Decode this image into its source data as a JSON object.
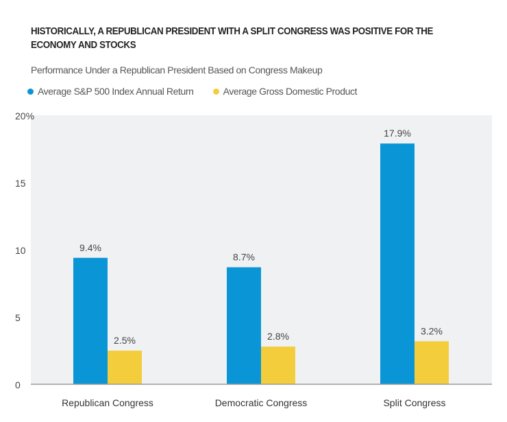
{
  "chart_data": {
    "type": "bar",
    "title": "HISTORICALLY, A REPUBLICAN PRESIDENT WITH A SPLIT CONGRESS WAS POSITIVE FOR THE ECONOMY AND STOCKS",
    "subtitle": "Performance Under a Republican President Based on Congress Makeup",
    "categories": [
      "Republican Congress",
      "Democratic Congress",
      "Split Congress"
    ],
    "series": [
      {
        "name": "Average S&P 500 Index Annual Return",
        "values": [
          9.4,
          8.7,
          17.9
        ],
        "labels": [
          "9.4%",
          "8.7%",
          "17.9%"
        ],
        "color": "#0a96d6"
      },
      {
        "name": "Average Gross Domestic Product",
        "values": [
          2.5,
          2.8,
          3.2
        ],
        "labels": [
          "2.5%",
          "2.8%",
          "3.2%"
        ],
        "color": "#f4cd3c"
      }
    ],
    "ylim": [
      0,
      20
    ],
    "yticks": [
      "0",
      "5",
      "10",
      "15",
      "20%"
    ],
    "ytick_values": [
      0,
      5,
      10,
      15,
      20
    ],
    "grid": false,
    "legend": "top-left",
    "plot_background": "#f0f1f3"
  }
}
